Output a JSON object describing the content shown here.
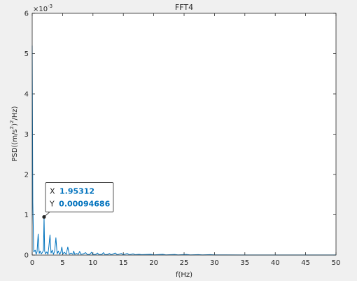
{
  "chart_data": {
    "type": "line",
    "title": "FFT4",
    "xlabel": "f(Hz)",
    "ylabel": "PSD((m/s^2)^2/Hz)",
    "ylabel_parts": {
      "main": "PSD((m/s",
      "sup1": "2",
      "mid": ")",
      "sup2": "2",
      "end": "/Hz)"
    },
    "y_exponent": "×10",
    "y_exponent_power": "-3",
    "xlim": [
      0,
      50
    ],
    "ylim": [
      0,
      6
    ],
    "xticks": [
      "0",
      "5",
      "10",
      "15",
      "20",
      "25",
      "30",
      "35",
      "40",
      "45",
      "50"
    ],
    "yticks": [
      "0",
      "1",
      "2",
      "3",
      "4",
      "5",
      "6"
    ],
    "grid": false,
    "series": [
      {
        "color": "#0072bd",
        "x": [
          0,
          0.1,
          0.25,
          0.5,
          0.65,
          0.8,
          0.98,
          1.15,
          1.3,
          1.5,
          1.7,
          1.85,
          1.95312,
          2.05,
          2.2,
          2.4,
          2.6,
          2.75,
          2.93,
          3.1,
          3.3,
          3.5,
          3.7,
          3.9,
          4.1,
          4.3,
          4.5,
          4.7,
          4.88,
          5.05,
          5.3,
          5.6,
          5.86,
          6.1,
          6.4,
          6.7,
          6.84,
          7.0,
          7.3,
          7.6,
          7.81,
          8.0,
          8.4,
          8.79,
          9.1,
          9.5,
          9.77,
          10.0,
          10.5,
          10.74,
          11.0,
          11.5,
          11.72,
          12.0,
          12.5,
          12.7,
          13.0,
          13.67,
          14.0,
          14.65,
          15.0,
          15.63,
          16.0,
          16.6,
          17.0,
          17.58,
          18.0,
          19.53,
          20.0,
          21.48,
          22.0,
          23.44,
          24.0,
          25.39,
          26.0,
          27.34,
          28.0,
          29.3,
          30.0,
          32.0,
          35.0,
          38.0,
          41.0,
          44.0,
          47.0,
          50.0
        ],
        "y": [
          5.2,
          1.3,
          0.08,
          0.12,
          0.02,
          0.08,
          0.52,
          0.04,
          0.1,
          0.03,
          0.07,
          0.12,
          0.94686,
          0.1,
          0.03,
          0.08,
          0.02,
          0.22,
          0.5,
          0.05,
          0.12,
          0.02,
          0.1,
          0.43,
          0.03,
          0.1,
          0.02,
          0.06,
          0.2,
          0.03,
          0.07,
          0.02,
          0.2,
          0.02,
          0.05,
          0.02,
          0.1,
          0.02,
          0.04,
          0.02,
          0.09,
          0.02,
          0.03,
          0.06,
          0.01,
          0.02,
          0.07,
          0.01,
          0.02,
          0.05,
          0.01,
          0.02,
          0.06,
          0.01,
          0.02,
          0.04,
          0.01,
          0.05,
          0.01,
          0.04,
          0.01,
          0.04,
          0.01,
          0.03,
          0.01,
          0.02,
          0.01,
          0.02,
          0.005,
          0.02,
          0.005,
          0.015,
          0.005,
          0.015,
          0.005,
          0.01,
          0.005,
          0.01,
          0.004,
          0.004,
          0.003,
          0.003,
          0.003,
          0.003,
          0.002,
          0.002
        ]
      }
    ],
    "datatip": {
      "x": 1.95312,
      "y": 0.94686,
      "x_label": "X",
      "y_label": "Y",
      "x_text": "1.95312",
      "y_text": "0.00094686",
      "value_color": "#0072bd"
    }
  }
}
